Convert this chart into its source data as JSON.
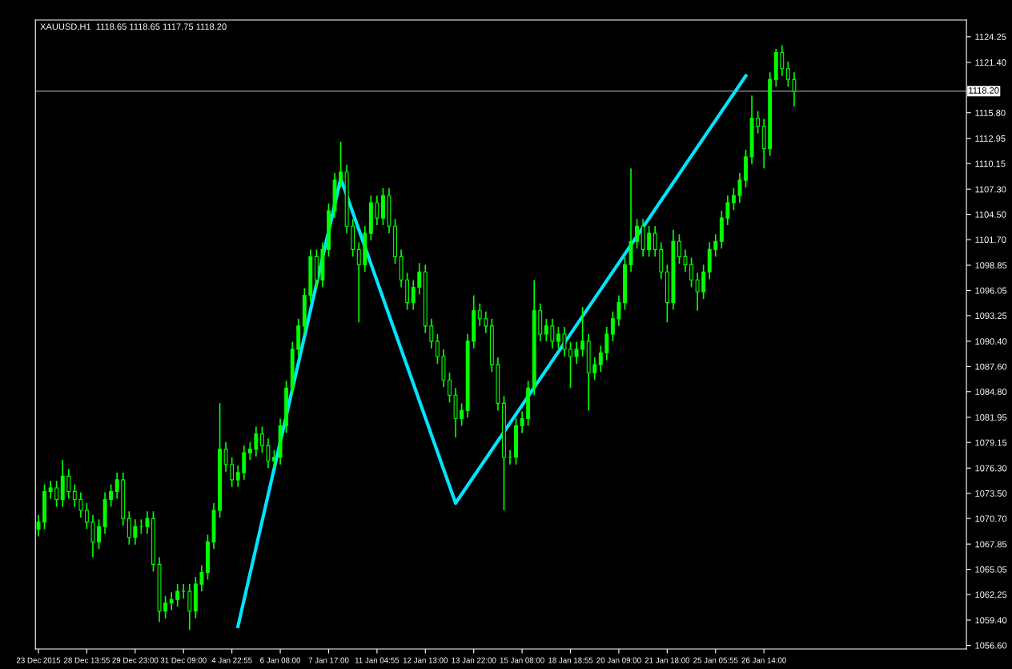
{
  "chart_data": {
    "type": "candlestick",
    "title": "XAUUSD,H1  1118.65 1118.65 1117.75 1118.20",
    "color": "#00ff00",
    "grid": false,
    "categories": [
      "23 Dec 2015",
      null,
      null,
      null,
      null,
      null,
      null,
      null,
      "28 Dec 13:55",
      null,
      null,
      null,
      null,
      null,
      null,
      null,
      "29 Dec 23:00",
      null,
      null,
      null,
      null,
      null,
      null,
      null,
      "31 Dec 09:00",
      null,
      null,
      null,
      null,
      null,
      null,
      null,
      "4 Jan 22:55",
      null,
      null,
      null,
      null,
      null,
      null,
      null,
      "6 Jan 08:00",
      null,
      null,
      null,
      null,
      null,
      null,
      null,
      "7 Jan 17:00",
      null,
      null,
      null,
      null,
      null,
      null,
      null,
      "11 Jan 04:55",
      null,
      null,
      null,
      null,
      null,
      null,
      null,
      "12 Jan 13:00",
      null,
      null,
      null,
      null,
      null,
      null,
      null,
      "13 Jan 22:00",
      null,
      null,
      null,
      null,
      null,
      null,
      null,
      "15 Jan 08:00",
      null,
      null,
      null,
      null,
      null,
      null,
      null,
      "18 Jan 18:55",
      null,
      null,
      null,
      null,
      null,
      null,
      null,
      "20 Jan 09:00",
      null,
      null,
      null,
      null,
      null,
      null,
      null,
      "21 Jan 18:00",
      null,
      null,
      null,
      null,
      null,
      null,
      null,
      "25 Jan 05:55",
      null,
      null,
      null,
      null,
      null,
      null,
      null,
      "26 Jan 14:00",
      null,
      null,
      null,
      null,
      null,
      null,
      null,
      null,
      null,
      null,
      null,
      null,
      null,
      null,
      null,
      null,
      null,
      null,
      null,
      null,
      null,
      null,
      null,
      null,
      null,
      null,
      null,
      null,
      null,
      null,
      null,
      null,
      null
    ],
    "ohlc": [
      [
        1069.5,
        1071.1,
        1068.7,
        1070.3
      ],
      [
        1070.3,
        1074.5,
        1069.5,
        1073.7
      ],
      [
        1073.7,
        1074.9,
        1072.9,
        1074.1
      ],
      [
        1074.1,
        1074.9,
        1072.0,
        1072.8
      ],
      [
        1072.8,
        1077.2,
        1072.0,
        1075.4
      ],
      [
        1075.4,
        1076.2,
        1072.9,
        1073.7
      ],
      [
        1073.7,
        1074.5,
        1072.0,
        1072.8
      ],
      [
        1072.8,
        1073.6,
        1070.8,
        1071.6
      ],
      [
        1071.6,
        1072.4,
        1069.5,
        1070.3
      ],
      [
        1070.3,
        1071.1,
        1066.4,
        1068.1
      ],
      [
        1068.1,
        1070.6,
        1067.3,
        1069.8
      ],
      [
        1069.8,
        1073.6,
        1069.0,
        1072.8
      ],
      [
        1072.8,
        1074.5,
        1072.0,
        1073.7
      ],
      [
        1073.7,
        1075.8,
        1072.9,
        1075.0
      ],
      [
        1075.0,
        1075.8,
        1069.9,
        1070.7
      ],
      [
        1070.7,
        1071.5,
        1067.8,
        1068.6
      ],
      [
        1068.6,
        1070.6,
        1067.8,
        1069.8
      ],
      [
        1069.8,
        1070.6,
        1069.0,
        1069.8
      ],
      [
        1069.8,
        1071.5,
        1069.0,
        1070.7
      ],
      [
        1070.7,
        1071.5,
        1064.8,
        1065.6
      ],
      [
        1065.6,
        1066.4,
        1059.2,
        1060.4
      ],
      [
        1060.4,
        1062.1,
        1059.6,
        1061.3
      ],
      [
        1061.3,
        1062.5,
        1060.5,
        1061.7
      ],
      [
        1061.7,
        1063.4,
        1060.9,
        1062.6
      ],
      [
        1062.6,
        1063.4,
        1061.8,
        1062.6
      ],
      [
        1062.6,
        1063.4,
        1058.3,
        1060.4
      ],
      [
        1060.4,
        1064.2,
        1059.6,
        1063.4
      ],
      [
        1063.4,
        1065.5,
        1062.6,
        1064.7
      ],
      [
        1064.7,
        1068.9,
        1063.9,
        1068.1
      ],
      [
        1068.1,
        1072.4,
        1067.3,
        1071.6
      ],
      [
        1071.6,
        1083.5,
        1070.8,
        1078.4
      ],
      [
        1078.4,
        1079.2,
        1075.9,
        1076.7
      ],
      [
        1076.7,
        1077.5,
        1074.2,
        1075.0
      ],
      [
        1075.0,
        1076.6,
        1074.2,
        1075.8
      ],
      [
        1075.8,
        1078.8,
        1075.0,
        1078.0
      ],
      [
        1078.0,
        1079.2,
        1077.2,
        1078.4
      ],
      [
        1078.4,
        1080.9,
        1077.6,
        1080.1
      ],
      [
        1080.1,
        1080.9,
        1078.0,
        1078.8
      ],
      [
        1078.8,
        1079.6,
        1076.3,
        1077.1
      ],
      [
        1077.1,
        1078.3,
        1076.3,
        1077.5
      ],
      [
        1077.5,
        1081.8,
        1076.7,
        1081.0
      ],
      [
        1081.0,
        1086.0,
        1080.2,
        1085.2
      ],
      [
        1085.2,
        1090.3,
        1084.4,
        1089.5
      ],
      [
        1089.5,
        1092.9,
        1088.7,
        1092.1
      ],
      [
        1092.1,
        1096.3,
        1091.3,
        1095.5
      ],
      [
        1095.5,
        1100.6,
        1094.7,
        1099.8
      ],
      [
        1099.8,
        1100.6,
        1096.4,
        1097.2
      ],
      [
        1097.2,
        1101.4,
        1096.4,
        1100.6
      ],
      [
        1100.6,
        1105.7,
        1099.8,
        1104.9
      ],
      [
        1104.9,
        1109.1,
        1104.1,
        1108.3
      ],
      [
        1108.3,
        1112.6,
        1107.5,
        1109.2
      ],
      [
        1109.2,
        1110.0,
        1102.4,
        1103.2
      ],
      [
        1103.2,
        1104.0,
        1099.8,
        1100.6
      ],
      [
        1100.6,
        1101.4,
        1092.5,
        1098.9
      ],
      [
        1098.9,
        1103.2,
        1098.1,
        1102.4
      ],
      [
        1102.4,
        1106.6,
        1101.6,
        1105.8
      ],
      [
        1105.8,
        1106.6,
        1103.3,
        1104.1
      ],
      [
        1104.1,
        1107.4,
        1103.3,
        1106.6
      ],
      [
        1106.6,
        1107.4,
        1102.4,
        1103.2
      ],
      [
        1103.2,
        1104.0,
        1099.0,
        1099.8
      ],
      [
        1099.8,
        1100.6,
        1096.4,
        1097.2
      ],
      [
        1097.2,
        1098.0,
        1093.9,
        1094.7
      ],
      [
        1094.7,
        1097.2,
        1093.9,
        1096.4
      ],
      [
        1096.4,
        1099.1,
        1095.6,
        1098.1
      ],
      [
        1098.1,
        1098.9,
        1091.3,
        1092.1
      ],
      [
        1092.1,
        1092.9,
        1089.6,
        1090.4
      ],
      [
        1090.4,
        1091.2,
        1087.9,
        1088.7
      ],
      [
        1088.7,
        1089.5,
        1085.3,
        1086.1
      ],
      [
        1086.1,
        1086.9,
        1083.6,
        1084.4
      ],
      [
        1084.4,
        1085.2,
        1079.7,
        1081.8
      ],
      [
        1081.8,
        1083.5,
        1081.0,
        1082.7
      ],
      [
        1082.7,
        1091.2,
        1081.9,
        1090.4
      ],
      [
        1090.4,
        1095.5,
        1089.6,
        1093.8
      ],
      [
        1093.8,
        1094.6,
        1092.1,
        1092.9
      ],
      [
        1092.9,
        1093.7,
        1091.3,
        1092.1
      ],
      [
        1092.1,
        1092.9,
        1087.0,
        1087.8
      ],
      [
        1087.8,
        1088.6,
        1082.7,
        1083.5
      ],
      [
        1083.5,
        1084.3,
        1071.6,
        1077.5
      ],
      [
        1077.5,
        1078.3,
        1076.7,
        1077.5
      ],
      [
        1077.5,
        1081.8,
        1076.7,
        1081.0
      ],
      [
        1081.0,
        1082.6,
        1080.2,
        1081.8
      ],
      [
        1081.8,
        1086.0,
        1081.0,
        1085.2
      ],
      [
        1085.2,
        1097.2,
        1084.4,
        1093.8
      ],
      [
        1093.8,
        1094.6,
        1090.4,
        1091.2
      ],
      [
        1091.2,
        1092.9,
        1090.4,
        1092.1
      ],
      [
        1092.1,
        1092.9,
        1089.6,
        1090.4
      ],
      [
        1090.4,
        1092.0,
        1089.6,
        1091.2
      ],
      [
        1091.2,
        1092.0,
        1088.7,
        1089.5
      ],
      [
        1089.5,
        1090.3,
        1085.2,
        1088.7
      ],
      [
        1088.7,
        1090.3,
        1087.9,
        1089.5
      ],
      [
        1089.5,
        1094.2,
        1088.7,
        1090.4
      ],
      [
        1090.4,
        1091.2,
        1082.7,
        1086.9
      ],
      [
        1086.9,
        1088.6,
        1086.1,
        1087.8
      ],
      [
        1087.8,
        1089.9,
        1087.0,
        1089.1
      ],
      [
        1089.1,
        1092.0,
        1088.3,
        1091.2
      ],
      [
        1091.2,
        1093.7,
        1090.4,
        1092.9
      ],
      [
        1092.9,
        1095.5,
        1092.1,
        1094.7
      ],
      [
        1094.7,
        1099.7,
        1093.9,
        1098.9
      ],
      [
        1098.9,
        1109.6,
        1098.1,
        1101.5
      ],
      [
        1101.5,
        1104.0,
        1100.7,
        1103.2
      ],
      [
        1103.2,
        1104.0,
        1099.8,
        1100.6
      ],
      [
        1100.6,
        1103.2,
        1099.8,
        1102.4
      ],
      [
        1102.4,
        1103.2,
        1099.8,
        1100.6
      ],
      [
        1100.6,
        1101.4,
        1097.3,
        1098.1
      ],
      [
        1098.1,
        1098.9,
        1092.5,
        1094.7
      ],
      [
        1094.7,
        1102.8,
        1093.9,
        1101.5
      ],
      [
        1101.5,
        1102.3,
        1099.0,
        1099.8
      ],
      [
        1099.8,
        1100.6,
        1098.1,
        1098.9
      ],
      [
        1098.9,
        1099.7,
        1096.4,
        1097.2
      ],
      [
        1097.2,
        1098.0,
        1093.8,
        1095.9
      ],
      [
        1095.9,
        1098.9,
        1095.1,
        1098.1
      ],
      [
        1098.1,
        1101.4,
        1097.3,
        1100.6
      ],
      [
        1100.6,
        1102.3,
        1099.8,
        1101.5
      ],
      [
        1101.5,
        1104.9,
        1100.7,
        1104.1
      ],
      [
        1104.1,
        1106.6,
        1103.3,
        1105.8
      ],
      [
        1105.8,
        1107.4,
        1105.0,
        1106.6
      ],
      [
        1106.6,
        1109.1,
        1105.8,
        1108.3
      ],
      [
        1108.3,
        1111.7,
        1107.5,
        1110.9
      ],
      [
        1110.9,
        1117.7,
        1110.1,
        1115.2
      ],
      [
        1115.2,
        1116.0,
        1113.5,
        1114.3
      ],
      [
        1114.3,
        1115.1,
        1109.6,
        1111.8
      ],
      [
        1111.8,
        1120.3,
        1111.0,
        1119.5
      ],
      [
        1119.5,
        1122.9,
        1118.7,
        1122.5
      ],
      [
        1122.5,
        1123.3,
        1119.9,
        1120.7
      ],
      [
        1120.7,
        1121.5,
        1118.7,
        1119.5
      ],
      [
        1119.5,
        1120.3,
        1116.5,
        1118.2
      ],
      null,
      null,
      null,
      null,
      null,
      null,
      null,
      null,
      null,
      null,
      null,
      null,
      null,
      null,
      null,
      null,
      null,
      null,
      null,
      null,
      null,
      null,
      null,
      null,
      null,
      null,
      null,
      null
    ],
    "series": [
      {
        "type": "line",
        "color": "#00e5ff",
        "line_style": "solid",
        "values": [
          null,
          null,
          null,
          null,
          null,
          null,
          null,
          null,
          null,
          null,
          null,
          null,
          null,
          null,
          null,
          null,
          null,
          null,
          null,
          null,
          null,
          null,
          null,
          null,
          null,
          null,
          null,
          null,
          null,
          null,
          null,
          null,
          null,
          1058.7,
          null,
          null,
          null,
          null,
          null,
          null,
          null,
          null,
          null,
          null,
          null,
          null,
          null,
          null,
          null,
          null,
          1108.5,
          null,
          null,
          null,
          null,
          null,
          null,
          null,
          null,
          null,
          null,
          null,
          null,
          null,
          null,
          null,
          null,
          null,
          null,
          1072.4,
          null,
          null,
          null,
          null,
          null,
          null,
          null,
          null,
          null,
          null,
          null,
          null,
          null,
          null,
          null,
          null,
          null,
          null,
          null,
          null,
          null,
          null,
          null,
          null,
          null,
          null,
          null,
          null,
          null,
          null,
          null,
          null,
          null,
          null,
          null,
          null,
          null,
          null,
          null,
          null,
          null,
          null,
          null,
          null,
          null,
          null,
          null,
          1119.9,
          null,
          null,
          null,
          null,
          null,
          null,
          null,
          null,
          null,
          null,
          null,
          null,
          null,
          null,
          null,
          null,
          null,
          null,
          null,
          null,
          null,
          null,
          null,
          null,
          null,
          null,
          null,
          null,
          null,
          null,
          null,
          null,
          null,
          null,
          null,
          null
        ]
      }
    ],
    "ylim": [
      1056.2,
      1126.1
    ],
    "yticks": [
      1124.25,
      {
        "value": 1121.4,
        "label": "1121.40"
      },
      {
        "value": 1115.8,
        "label": "1115.80"
      },
      1112.95,
      1110.15,
      {
        "value": 1107.3,
        "label": "1107.30"
      },
      {
        "value": 1104.5,
        "label": "1104.50"
      },
      {
        "value": 1101.7,
        "label": "1101.70"
      },
      1098.85,
      1096.05,
      1093.25,
      {
        "value": 1090.4,
        "label": "1090.40"
      },
      {
        "value": 1087.6,
        "label": "1087.60"
      },
      {
        "value": 1084.8,
        "label": "1084.80"
      },
      1081.95,
      1079.15,
      {
        "value": 1076.3,
        "label": "1076.30"
      },
      {
        "value": 1073.5,
        "label": "1073.50"
      },
      {
        "value": 1070.7,
        "label": "1070.70"
      },
      1067.85,
      1065.05,
      1062.25,
      {
        "value": 1059.4,
        "label": "1059.40"
      },
      {
        "value": 1056.6,
        "label": "1056.60"
      }
    ],
    "ref_lines": [
      {
        "axis": "y",
        "value": 1118.2,
        "label": "1118.20",
        "color": "#808080"
      }
    ]
  }
}
